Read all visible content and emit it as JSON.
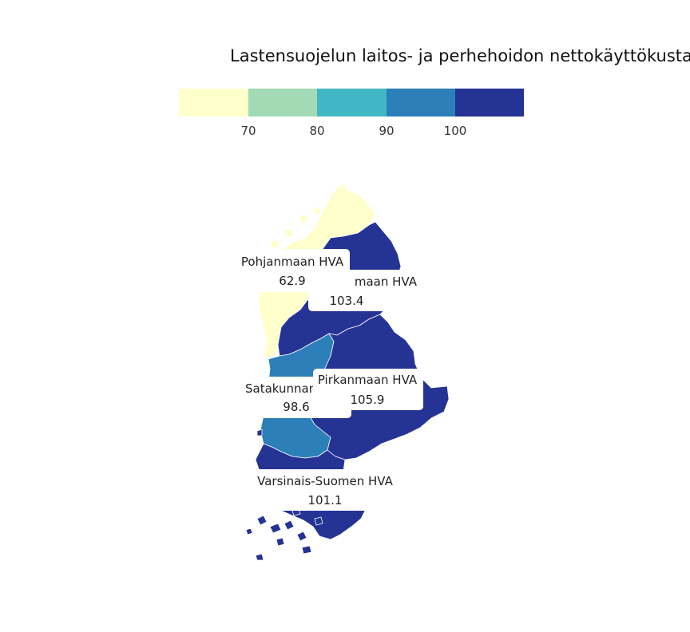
{
  "chart_data": {
    "type": "choropleth",
    "title": "Lastensuojelun laitos- ja perhehoidon nettokäyttökusta",
    "legend": {
      "placement": "top",
      "bins": [
        {
          "color": "#ffffcc"
        },
        {
          "color": "#a1dab4"
        },
        {
          "color": "#41b6c4"
        },
        {
          "color": "#2c7fb8"
        },
        {
          "color": "#253494"
        }
      ],
      "ticks": [
        "70",
        "80",
        "90",
        "100"
      ]
    },
    "regions": [
      {
        "name": "Pohjanmaan HVA",
        "value": "62.9",
        "color": "#ffffcc"
      },
      {
        "name": "Etelä-Pohjanmaan HVA",
        "shown_name": "maan HVA",
        "value": "103.4",
        "color": "#253494"
      },
      {
        "name": "Satakunnan HVA",
        "shown_name": "Satakunnan",
        "value": "98.6",
        "color": "#2c7fb8"
      },
      {
        "name": "Pirkanmaan HVA",
        "value": "105.9",
        "color": "#253494"
      },
      {
        "name": "Varsinais-Suomen HVA",
        "value": "101.1",
        "color": "#253494"
      }
    ]
  }
}
